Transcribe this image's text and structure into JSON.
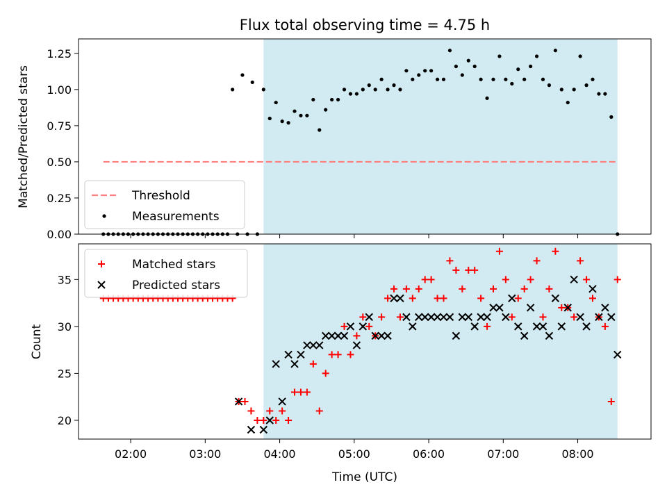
{
  "chart_data": [
    {
      "type": "scatter",
      "title": "Flux total observing time = 4.75 h",
      "xlabel": "",
      "ylabel": "Matched/Predicted stars",
      "xlim": [
        "01:18",
        "08:59"
      ],
      "ylim": [
        0,
        1.35
      ],
      "yticks": [
        "0.00",
        "0.25",
        "0.50",
        "0.75",
        "1.00",
        "1.25"
      ],
      "xticks": [
        "02:00",
        "03:00",
        "04:00",
        "05:00",
        "06:00",
        "07:00",
        "08:00"
      ],
      "shaded_span": [
        "03:47",
        "08:32"
      ],
      "shade_color": "#add8e6",
      "legend_position": "lower-left",
      "threshold": {
        "name": "Threshold",
        "value": 0.5,
        "x": [
          "01:38",
          "08:32"
        ],
        "color": "#ff7f7f"
      },
      "series": [
        {
          "name": "Measurements",
          "color": "#000000",
          "x": [
            "01:38",
            "01:42",
            "01:46",
            "01:50",
            "01:54",
            "01:58",
            "02:02",
            "02:06",
            "02:10",
            "02:14",
            "02:18",
            "02:22",
            "02:26",
            "02:30",
            "02:34",
            "02:38",
            "02:42",
            "02:46",
            "02:50",
            "02:54",
            "02:58",
            "03:02",
            "03:06",
            "03:10",
            "03:14",
            "03:18",
            "03:22",
            "03:26",
            "03:30",
            "03:34",
            "03:38",
            "03:42",
            "03:47",
            "03:52",
            "03:57",
            "04:02",
            "04:07",
            "04:12",
            "04:17",
            "04:22",
            "04:27",
            "04:32",
            "04:37",
            "04:42",
            "04:47",
            "04:52",
            "04:57",
            "05:02",
            "05:07",
            "05:12",
            "05:17",
            "05:22",
            "05:27",
            "05:32",
            "05:37",
            "05:42",
            "05:47",
            "05:52",
            "05:57",
            "06:02",
            "06:07",
            "06:12",
            "06:17",
            "06:22",
            "06:27",
            "06:32",
            "06:37",
            "06:42",
            "06:47",
            "06:52",
            "06:57",
            "07:02",
            "07:07",
            "07:12",
            "07:17",
            "07:22",
            "07:27",
            "07:32",
            "07:37",
            "07:42",
            "07:47",
            "07:52",
            "07:57",
            "08:02",
            "08:07",
            "08:12",
            "08:17",
            "08:22",
            "08:27",
            "08:32"
          ],
          "y": [
            0,
            0,
            0,
            0,
            0,
            0,
            0,
            0,
            0,
            0,
            0,
            0,
            0,
            0,
            0,
            0,
            0,
            0,
            0,
            0,
            0,
            0,
            0,
            0,
            0,
            0,
            1.0,
            0,
            1.1,
            0,
            1.05,
            0,
            1.0,
            0.8,
            0.91,
            0.78,
            0.77,
            0.85,
            0.82,
            0.82,
            0.93,
            0.72,
            0.86,
            0.93,
            0.93,
            1.0,
            0.97,
            0.97,
            1.0,
            1.03,
            1.0,
            1.07,
            1.0,
            1.03,
            1.0,
            1.13,
            1.07,
            1.1,
            1.13,
            1.13,
            1.07,
            1.07,
            1.27,
            1.16,
            1.1,
            1.2,
            1.16,
            1.07,
            0.94,
            1.07,
            1.23,
            1.07,
            1.04,
            1.14,
            1.07,
            1.16,
            1.23,
            1.07,
            1.03,
            1.27,
            1.0,
            0.91,
            1.0,
            1.23,
            1.03,
            1.07,
            0.97,
            0.97,
            0.81,
            0
          ]
        }
      ]
    },
    {
      "type": "scatter",
      "title": "",
      "xlabel": "Time (UTC)",
      "ylabel": "Count",
      "xlim": [
        "01:18",
        "08:59"
      ],
      "ylim": [
        18,
        38.8
      ],
      "yticks": [
        20,
        25,
        30,
        35
      ],
      "xticks": [
        "02:00",
        "03:00",
        "04:00",
        "05:00",
        "06:00",
        "07:00",
        "08:00"
      ],
      "shaded_span": [
        "03:47",
        "08:32"
      ],
      "shade_color": "#add8e6",
      "legend_position": "upper-left",
      "series": [
        {
          "name": "Matched stars",
          "marker": "plus",
          "color": "#ff0000",
          "x": [
            "01:38",
            "01:42",
            "01:46",
            "01:50",
            "01:54",
            "01:58",
            "02:02",
            "02:06",
            "02:10",
            "02:14",
            "02:18",
            "02:22",
            "02:26",
            "02:30",
            "02:34",
            "02:38",
            "02:42",
            "02:46",
            "02:50",
            "02:54",
            "02:58",
            "03:02",
            "03:06",
            "03:10",
            "03:14",
            "03:18",
            "03:22",
            "03:27",
            "03:32",
            "03:37",
            "03:42",
            "03:47",
            "03:52",
            "03:57",
            "04:02",
            "04:07",
            "04:12",
            "04:17",
            "04:22",
            "04:27",
            "04:32",
            "04:37",
            "04:42",
            "04:47",
            "04:52",
            "04:57",
            "05:02",
            "05:07",
            "05:12",
            "05:17",
            "05:22",
            "05:27",
            "05:32",
            "05:37",
            "05:42",
            "05:47",
            "05:52",
            "05:57",
            "06:02",
            "06:07",
            "06:12",
            "06:17",
            "06:22",
            "06:27",
            "06:32",
            "06:37",
            "06:42",
            "06:47",
            "06:52",
            "06:57",
            "07:02",
            "07:07",
            "07:12",
            "07:17",
            "07:22",
            "07:27",
            "07:32",
            "07:37",
            "07:42",
            "07:47",
            "07:52",
            "07:57",
            "08:02",
            "08:07",
            "08:12",
            "08:17",
            "08:22",
            "08:27",
            "08:32"
          ],
          "y": [
            33,
            33,
            33,
            33,
            33,
            33,
            33,
            33,
            33,
            33,
            33,
            33,
            33,
            33,
            33,
            33,
            33,
            33,
            33,
            33,
            33,
            33,
            33,
            33,
            33,
            33,
            33,
            22,
            22,
            21,
            20,
            20,
            21,
            20,
            21,
            20,
            23,
            23,
            23,
            26,
            21,
            25,
            27,
            27,
            30,
            27,
            29,
            31,
            30,
            29,
            31,
            33,
            34,
            31,
            34,
            33,
            34,
            35,
            35,
            33,
            33,
            37,
            36,
            34,
            36,
            36,
            33,
            30,
            34,
            38,
            35,
            31,
            33,
            34,
            35,
            37,
            31,
            34,
            38,
            32,
            32,
            31,
            37,
            35,
            33,
            31,
            30,
            22,
            35
          ]
        },
        {
          "name": "Predicted stars",
          "marker": "cross",
          "color": "#000000",
          "x": [
            "03:27",
            "03:37",
            "03:47",
            "03:52",
            "03:57",
            "04:02",
            "04:07",
            "04:12",
            "04:17",
            "04:22",
            "04:27",
            "04:32",
            "04:37",
            "04:42",
            "04:47",
            "04:52",
            "04:57",
            "05:02",
            "05:07",
            "05:12",
            "05:17",
            "05:22",
            "05:27",
            "05:32",
            "05:37",
            "05:42",
            "05:47",
            "05:52",
            "05:57",
            "06:02",
            "06:07",
            "06:12",
            "06:17",
            "06:22",
            "06:27",
            "06:32",
            "06:37",
            "06:42",
            "06:47",
            "06:52",
            "06:57",
            "07:02",
            "07:07",
            "07:12",
            "07:17",
            "07:22",
            "07:27",
            "07:32",
            "07:37",
            "07:42",
            "07:47",
            "07:52",
            "07:57",
            "08:02",
            "08:07",
            "08:12",
            "08:17",
            "08:22",
            "08:27",
            "08:32"
          ],
          "y": [
            22,
            19,
            19,
            20,
            26,
            22,
            27,
            26,
            27,
            28,
            28,
            28,
            29,
            29,
            29,
            29,
            30,
            28,
            30,
            31,
            29,
            29,
            29,
            33,
            33,
            31,
            30,
            31,
            31,
            31,
            31,
            31,
            31,
            29,
            31,
            31,
            30,
            31,
            31,
            32,
            32,
            31,
            33,
            30,
            29,
            32,
            30,
            30,
            29,
            33,
            30,
            32,
            35,
            31,
            30,
            34,
            31,
            32,
            31,
            27
          ]
        }
      ]
    }
  ]
}
